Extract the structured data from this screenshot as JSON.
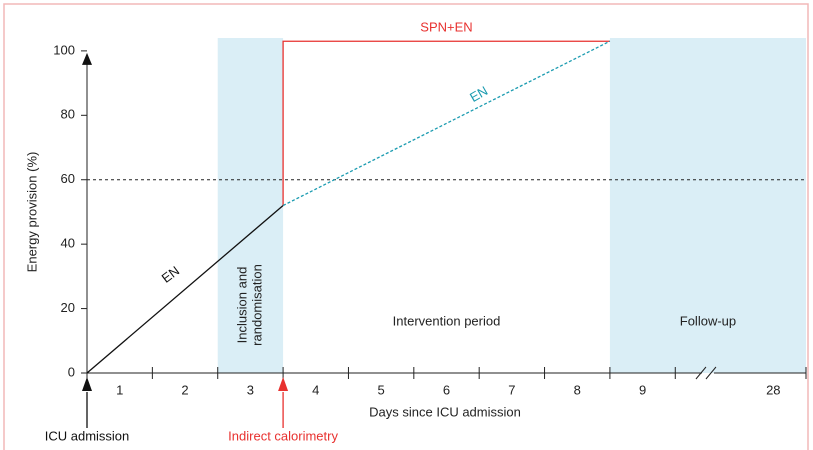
{
  "chart_data": {
    "type": "line",
    "x_label": "Days since ICU admission",
    "y_label": "Energy provision (%)",
    "categories": [
      "1",
      "2",
      "3",
      "4",
      "5",
      "6",
      "7",
      "8",
      "9",
      null,
      "28"
    ],
    "xlim": [
      0,
      11
    ],
    "xticks": [
      0,
      1,
      2,
      3,
      4,
      5,
      6,
      7,
      8,
      9,
      11
    ],
    "axis_break": 9.5,
    "ylim": [
      0,
      104
    ],
    "yticks": [
      0,
      20,
      40,
      60,
      80,
      100
    ],
    "reference_line": 60,
    "series": [
      {
        "name": "EN",
        "color": "#111111",
        "dashed": false,
        "x": [
          0,
          3
        ],
        "values": [
          0,
          52
        ]
      },
      {
        "name": "SPN+EN",
        "color": "#e8312f",
        "dashed": false,
        "x": [
          3,
          3,
          8
        ],
        "values": [
          52,
          103,
          103
        ]
      },
      {
        "name": "EN",
        "color": "#1a9bb0",
        "dashed": true,
        "x": [
          3,
          8
        ],
        "values": [
          52,
          103
        ]
      }
    ],
    "periods": [
      {
        "from": 2,
        "to": 3,
        "shaded": true,
        "label": [
          "Inclusion and",
          "randomisation"
        ]
      },
      {
        "from": 3,
        "to": 8,
        "shaded": false,
        "label": [
          "Intervention period"
        ]
      },
      {
        "from": 8,
        "to": 11,
        "shaded": true,
        "label": [
          "Follow-up"
        ]
      }
    ],
    "markers": [
      {
        "x": 0,
        "label": "ICU admission",
        "color": "#111111"
      },
      {
        "x": 3,
        "label": "Indirect calorimetry",
        "color": "#e8312f"
      }
    ]
  }
}
